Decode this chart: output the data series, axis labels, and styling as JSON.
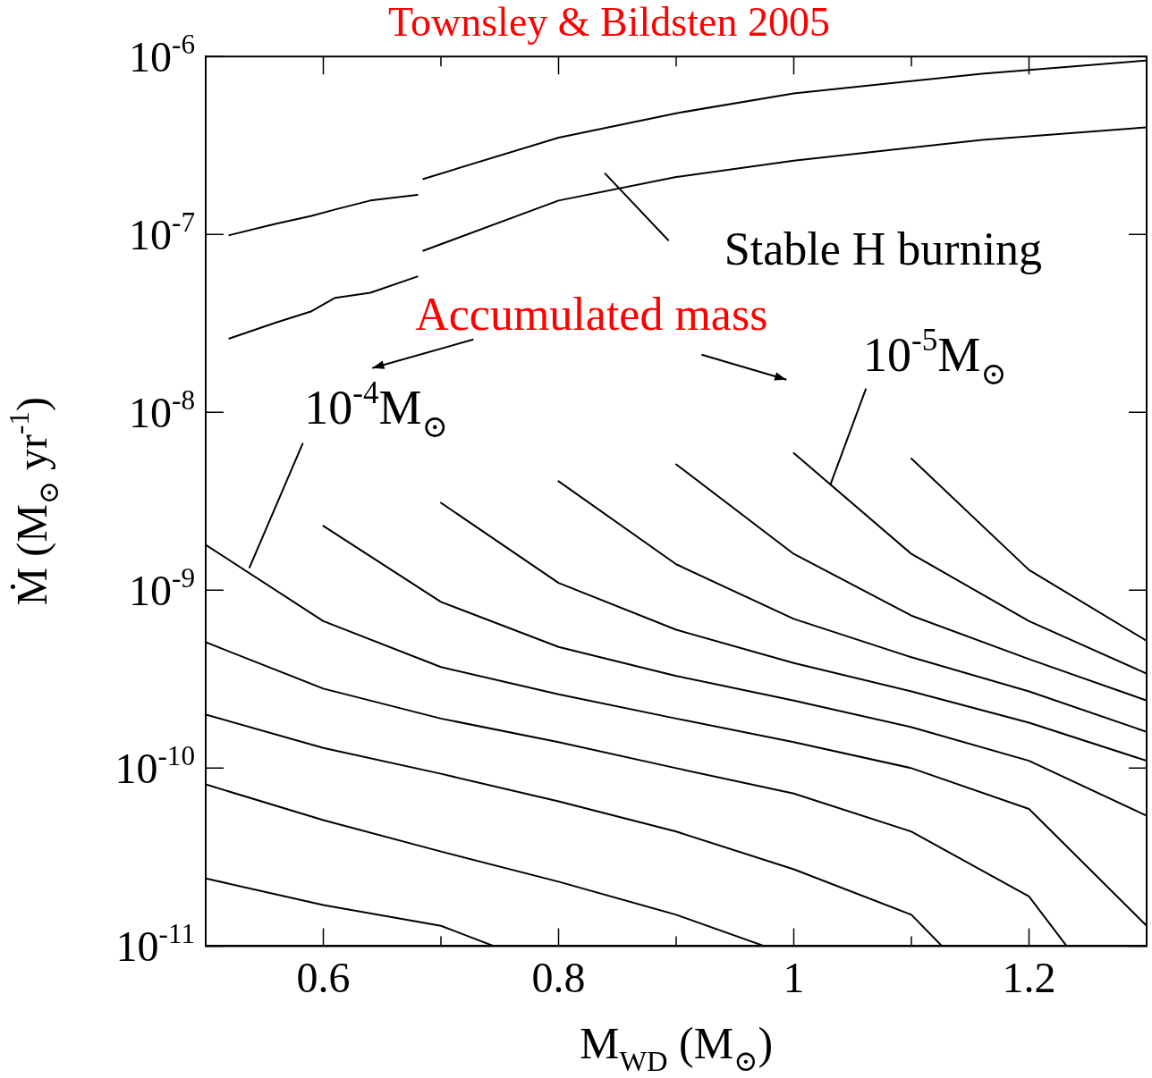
{
  "chart_data": {
    "type": "line",
    "title": "Townsley & Bildsten 2005",
    "xlabel": "M$_{WD}$ (M$_{⊙}$)",
    "ylabel": "Ṁ (M$_{⊙}$ yr$^{-1}$)",
    "log": true,
    "xlim": [
      0.5,
      1.3
    ],
    "xticks": [
      0.6,
      {
        "value": 0.7,
        "label": null
      },
      0.8,
      {
        "value": 0.9,
        "label": null
      },
      1,
      {
        "value": 1.1,
        "label": null
      },
      1.2
    ],
    "ylim": [
      1e-11,
      1e-06
    ],
    "yticks": [
      {
        "value": 1e-11,
        "label": "10$^{-11}$"
      },
      {
        "value": 1e-10,
        "label": "10$^{-10}$"
      },
      {
        "value": 1e-09,
        "label": "10$^{-9}$"
      },
      {
        "value": 1e-08,
        "label": "10$^{-8}$"
      },
      {
        "value": 1e-07,
        "label": "10$^{-7}$"
      },
      {
        "value": 1e-06,
        "label": "10$^{-6}$"
      }
    ],
    "series": [
      {
        "color": "#000000",
        "x": [
          0.5,
          0.6,
          0.7,
          0.8,
          0.9,
          1.0,
          1.1,
          1.2,
          1.3
        ],
        "values": [
          1.8e-09,
          6.7e-10,
          3.7e-10,
          2.6e-10,
          1.9e-10,
          1.4e-10,
          1e-10,
          5.9e-11,
          1.3e-11
        ]
      },
      {
        "color": "#000000",
        "x": [
          0.5,
          0.6,
          0.7,
          0.8,
          0.9,
          1.0,
          1.1,
          1.2,
          1.232
        ],
        "values": [
          5.1e-10,
          2.8e-10,
          1.9e-10,
          1.4e-10,
          1e-10,
          7.2e-11,
          4.4e-11,
          1.9e-11,
          1e-11
        ]
      },
      {
        "color": "#000000",
        "x": [
          0.5,
          0.6,
          0.7,
          0.8,
          0.9,
          1.0,
          1.1,
          1.126
        ],
        "values": [
          2e-10,
          1.3e-10,
          9.3e-11,
          6.5e-11,
          4.4e-11,
          2.7e-11,
          1.5e-11,
          1e-11
        ]
      },
      {
        "color": "#000000",
        "x": [
          0.5,
          0.6,
          0.7,
          0.8,
          0.9,
          0.975
        ],
        "values": [
          8.1e-11,
          5.1e-11,
          3.4e-11,
          2.3e-11,
          1.5e-11,
          1e-11
        ]
      },
      {
        "color": "#000000",
        "x": [
          0.5,
          0.6,
          0.7,
          0.745
        ],
        "values": [
          2.4e-11,
          1.7e-11,
          1.3e-11,
          1e-11
        ]
      },
      {
        "color": "#000000",
        "x": [
          0.6,
          0.7,
          0.8,
          0.9,
          1.0,
          1.1,
          1.2,
          1.3
        ],
        "values": [
          2.3e-09,
          8.6e-10,
          4.8e-10,
          3.3e-10,
          2.4e-10,
          1.7e-10,
          1.1e-10,
          5.4e-11
        ]
      },
      {
        "color": "#000000",
        "x": [
          0.7,
          0.8,
          0.9,
          1.0,
          1.1,
          1.2,
          1.3
        ],
        "values": [
          3.1e-09,
          1.1e-09,
          6e-10,
          3.9e-10,
          2.7e-10,
          1.8e-10,
          1.1e-10
        ]
      },
      {
        "color": "#000000",
        "x": [
          0.8,
          0.9,
          1.0,
          1.1,
          1.2,
          1.3
        ],
        "values": [
          4.1e-09,
          1.4e-09,
          6.9e-10,
          4.2e-10,
          2.7e-10,
          1.6e-10
        ]
      },
      {
        "color": "#000000",
        "x": [
          0.9,
          1.0,
          1.1,
          1.2,
          1.3
        ],
        "values": [
          5.1e-09,
          1.6e-09,
          7.2e-10,
          4.1e-10,
          2.4e-10
        ]
      },
      {
        "color": "#000000",
        "x": [
          1.0,
          1.1,
          1.2,
          1.3
        ],
        "values": [
          5.9e-09,
          1.6e-09,
          6.7e-10,
          3.4e-10
        ]
      },
      {
        "color": "#000000",
        "x": [
          1.1,
          1.2,
          1.3
        ],
        "values": [
          5.5e-09,
          1.3e-09,
          5.2e-10
        ]
      },
      {
        "color": "#000000",
        "x": [
          0.52,
          0.56,
          0.59,
          0.61,
          0.64,
          0.68
        ],
        "values": [
          9.9e-08,
          1.15e-07,
          1.27e-07,
          1.38e-07,
          1.55e-07,
          1.67e-07
        ]
      },
      {
        "color": "#000000",
        "x": [
          0.52,
          0.56,
          0.59,
          0.61,
          0.64,
          0.68
        ],
        "values": [
          2.6e-08,
          3.2e-08,
          3.7e-08,
          4.4e-08,
          4.7e-08,
          5.8e-08
        ]
      },
      {
        "color": "#000000",
        "x": [
          0.685,
          0.8,
          0.9,
          1.0,
          1.16,
          1.3
        ],
        "values": [
          2.05e-07,
          3.5e-07,
          4.8e-07,
          6.2e-07,
          8e-07,
          9.5e-07
        ]
      },
      {
        "color": "#000000",
        "x": [
          0.685,
          0.8,
          0.9,
          1.0,
          1.16,
          1.3
        ],
        "values": [
          8.1e-08,
          1.55e-07,
          2.1e-07,
          2.6e-07,
          3.4e-07,
          4e-07
        ]
      }
    ],
    "annotations": [
      "Accumulated mass",
      {
        "text": "10$^{-4}$M$_{⊙}$",
        "x": 0.537,
        "y": 1.33e-09
      },
      {
        "text": "10$^{-5}$M$_{⊙}$",
        "x": 1.031,
        "y": 3.9e-09
      },
      "Stable H burning"
    ]
  }
}
